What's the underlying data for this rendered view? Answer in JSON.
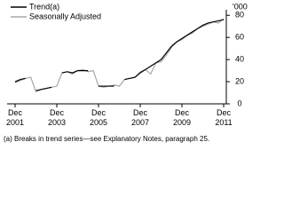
{
  "chart_data": {
    "type": "line",
    "y_unit": "'000",
    "categories": [
      "Dec 2001",
      null,
      null,
      null,
      null,
      null,
      null,
      null,
      "Dec 2003",
      null,
      null,
      null,
      null,
      null,
      null,
      null,
      "Dec 2005",
      null,
      null,
      null,
      null,
      null,
      null,
      null,
      "Dec 2007",
      null,
      null,
      null,
      null,
      null,
      null,
      null,
      "Dec 2009",
      null,
      null,
      null,
      null,
      null,
      null,
      null,
      "Dec 2011"
    ],
    "series": [
      {
        "name": "Trend(a)",
        "color": "#000000",
        "values": [
          20,
          22,
          23,
          null,
          12,
          13,
          14,
          15,
          null,
          28,
          29,
          28,
          30,
          30,
          30,
          null,
          16,
          16,
          16,
          16,
          null,
          22,
          23,
          24,
          28,
          31,
          34,
          37,
          40,
          46,
          52,
          56,
          59,
          62,
          65,
          68,
          71,
          73,
          74,
          75,
          76
        ]
      },
      {
        "name": "Seasonally Adjusted",
        "color": "#a6a6a6",
        "values": [
          19,
          21,
          23,
          24,
          11,
          13,
          14,
          15,
          16,
          28,
          29,
          27,
          30,
          31,
          29,
          30,
          16,
          15,
          16,
          17,
          16,
          22,
          23,
          24,
          29,
          31,
          27,
          37,
          38,
          44,
          51,
          56,
          58,
          62,
          64,
          68,
          70,
          72,
          74,
          73,
          77
        ]
      }
    ],
    "ylim": [
      0,
      85
    ],
    "yticks": [
      0,
      20,
      40,
      60,
      80
    ],
    "footnote": "(a) Breaks in trend series—see Explanatory Notes, paragraph 25."
  }
}
